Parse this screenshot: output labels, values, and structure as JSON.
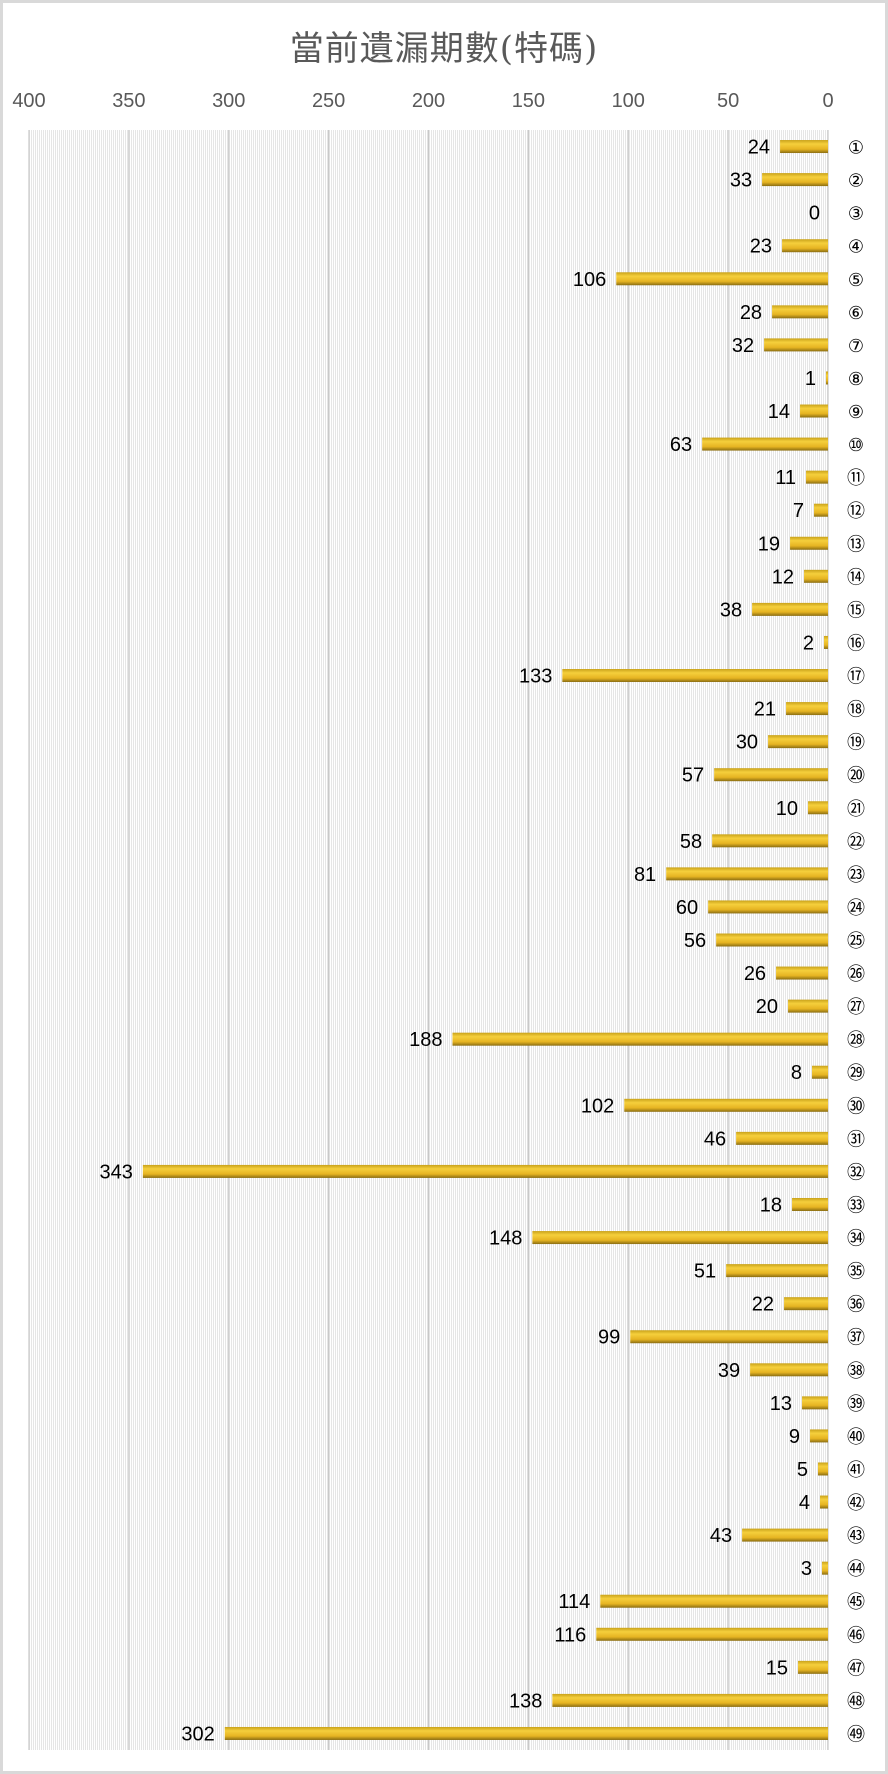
{
  "chart_data": {
    "type": "bar",
    "orientation": "horizontal",
    "x_reversed": true,
    "title": "當前遺漏期數(特碼)",
    "xlim": [
      0,
      400
    ],
    "xticks": [
      400,
      350,
      300,
      250,
      200,
      150,
      100,
      50,
      0
    ],
    "grid": true,
    "bar_color": "#E6B422",
    "categories": [
      "①",
      "②",
      "③",
      "④",
      "⑤",
      "⑥",
      "⑦",
      "⑧",
      "⑨",
      "⑩",
      "⑪",
      "⑫",
      "⑬",
      "⑭",
      "⑮",
      "⑯",
      "⑰",
      "⑱",
      "⑲",
      "⑳",
      "㉑",
      "㉒",
      "㉓",
      "㉔",
      "㉕",
      "㉖",
      "㉗",
      "㉘",
      "㉙",
      "㉚",
      "㉛",
      "㉜",
      "㉝",
      "㉞",
      "㉟",
      "㊱",
      "㊲",
      "㊳",
      "㊴",
      "㊵",
      "㊶",
      "㊷",
      "㊸",
      "㊹",
      "㊺",
      "㊻",
      "㊼",
      "㊽",
      "㊾"
    ],
    "values": [
      24,
      33,
      0,
      23,
      106,
      28,
      32,
      1,
      14,
      63,
      11,
      7,
      19,
      12,
      38,
      2,
      133,
      21,
      30,
      57,
      10,
      58,
      81,
      60,
      56,
      26,
      20,
      188,
      8,
      102,
      46,
      343,
      18,
      148,
      51,
      22,
      99,
      39,
      13,
      9,
      5,
      4,
      43,
      3,
      114,
      116,
      15,
      138,
      302
    ]
  }
}
